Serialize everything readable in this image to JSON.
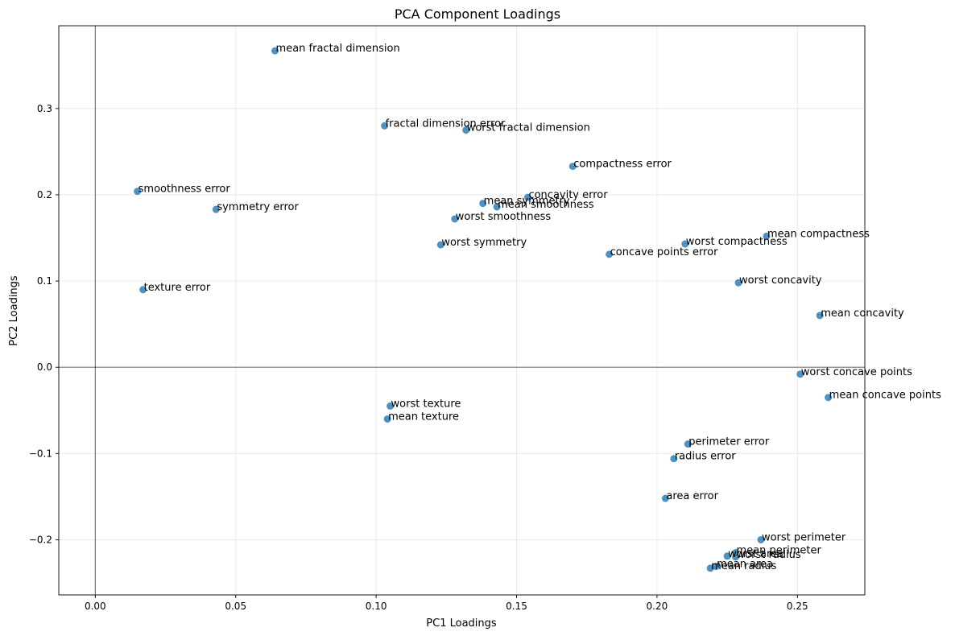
{
  "chart_data": {
    "type": "scatter",
    "title": "PCA Component Loadings",
    "xlabel": "PC1 Loadings",
    "ylabel": "PC2 Loadings",
    "xlim": [
      -0.013,
      0.274
    ],
    "ylim": [
      -0.264,
      0.396
    ],
    "xticks": [
      0.0,
      0.05,
      0.1,
      0.15,
      0.2,
      0.25
    ],
    "xtick_labels": [
      "0.00",
      "0.05",
      "0.10",
      "0.15",
      "0.20",
      "0.25"
    ],
    "yticks": [
      -0.2,
      -0.1,
      0.0,
      0.1,
      0.2,
      0.3
    ],
    "ytick_labels": [
      "−0.2",
      "−0.1",
      "0.0",
      "0.1",
      "0.2",
      "0.3"
    ],
    "grid": true,
    "reference_lines": {
      "x": 0,
      "y": 0
    },
    "point_color": "#1f77b4",
    "points": [
      {
        "label": "mean radius",
        "x": 0.219,
        "y": -0.233
      },
      {
        "label": "mean texture",
        "x": 0.104,
        "y": -0.06
      },
      {
        "label": "mean perimeter",
        "x": 0.228,
        "y": -0.215
      },
      {
        "label": "mean area",
        "x": 0.221,
        "y": -0.231
      },
      {
        "label": "mean smoothness",
        "x": 0.143,
        "y": 0.186
      },
      {
        "label": "mean compactness",
        "x": 0.239,
        "y": 0.152
      },
      {
        "label": "mean concavity",
        "x": 0.258,
        "y": 0.06
      },
      {
        "label": "mean concave points",
        "x": 0.261,
        "y": -0.035
      },
      {
        "label": "mean symmetry",
        "x": 0.138,
        "y": 0.19
      },
      {
        "label": "mean fractal dimension",
        "x": 0.064,
        "y": 0.367
      },
      {
        "label": "radius error",
        "x": 0.206,
        "y": -0.106
      },
      {
        "label": "texture error",
        "x": 0.017,
        "y": 0.09
      },
      {
        "label": "perimeter error",
        "x": 0.211,
        "y": -0.089
      },
      {
        "label": "area error",
        "x": 0.203,
        "y": -0.152
      },
      {
        "label": "smoothness error",
        "x": 0.015,
        "y": 0.204
      },
      {
        "label": "compactness error",
        "x": 0.17,
        "y": 0.233
      },
      {
        "label": "concavity error",
        "x": 0.154,
        "y": 0.197
      },
      {
        "label": "concave points error",
        "x": 0.183,
        "y": 0.131
      },
      {
        "label": "symmetry error",
        "x": 0.043,
        "y": 0.183
      },
      {
        "label": "fractal dimension error",
        "x": 0.103,
        "y": 0.28
      },
      {
        "label": "worst radius",
        "x": 0.228,
        "y": -0.22
      },
      {
        "label": "worst texture",
        "x": 0.105,
        "y": -0.045
      },
      {
        "label": "worst perimeter",
        "x": 0.237,
        "y": -0.2
      },
      {
        "label": "worst area",
        "x": 0.225,
        "y": -0.219
      },
      {
        "label": "worst smoothness",
        "x": 0.128,
        "y": 0.172
      },
      {
        "label": "worst compactness",
        "x": 0.21,
        "y": 0.143
      },
      {
        "label": "worst concavity",
        "x": 0.229,
        "y": 0.098
      },
      {
        "label": "worst concave points",
        "x": 0.251,
        "y": -0.008
      },
      {
        "label": "worst symmetry",
        "x": 0.123,
        "y": 0.142
      },
      {
        "label": "worst fractal dimension",
        "x": 0.132,
        "y": 0.275
      }
    ]
  }
}
